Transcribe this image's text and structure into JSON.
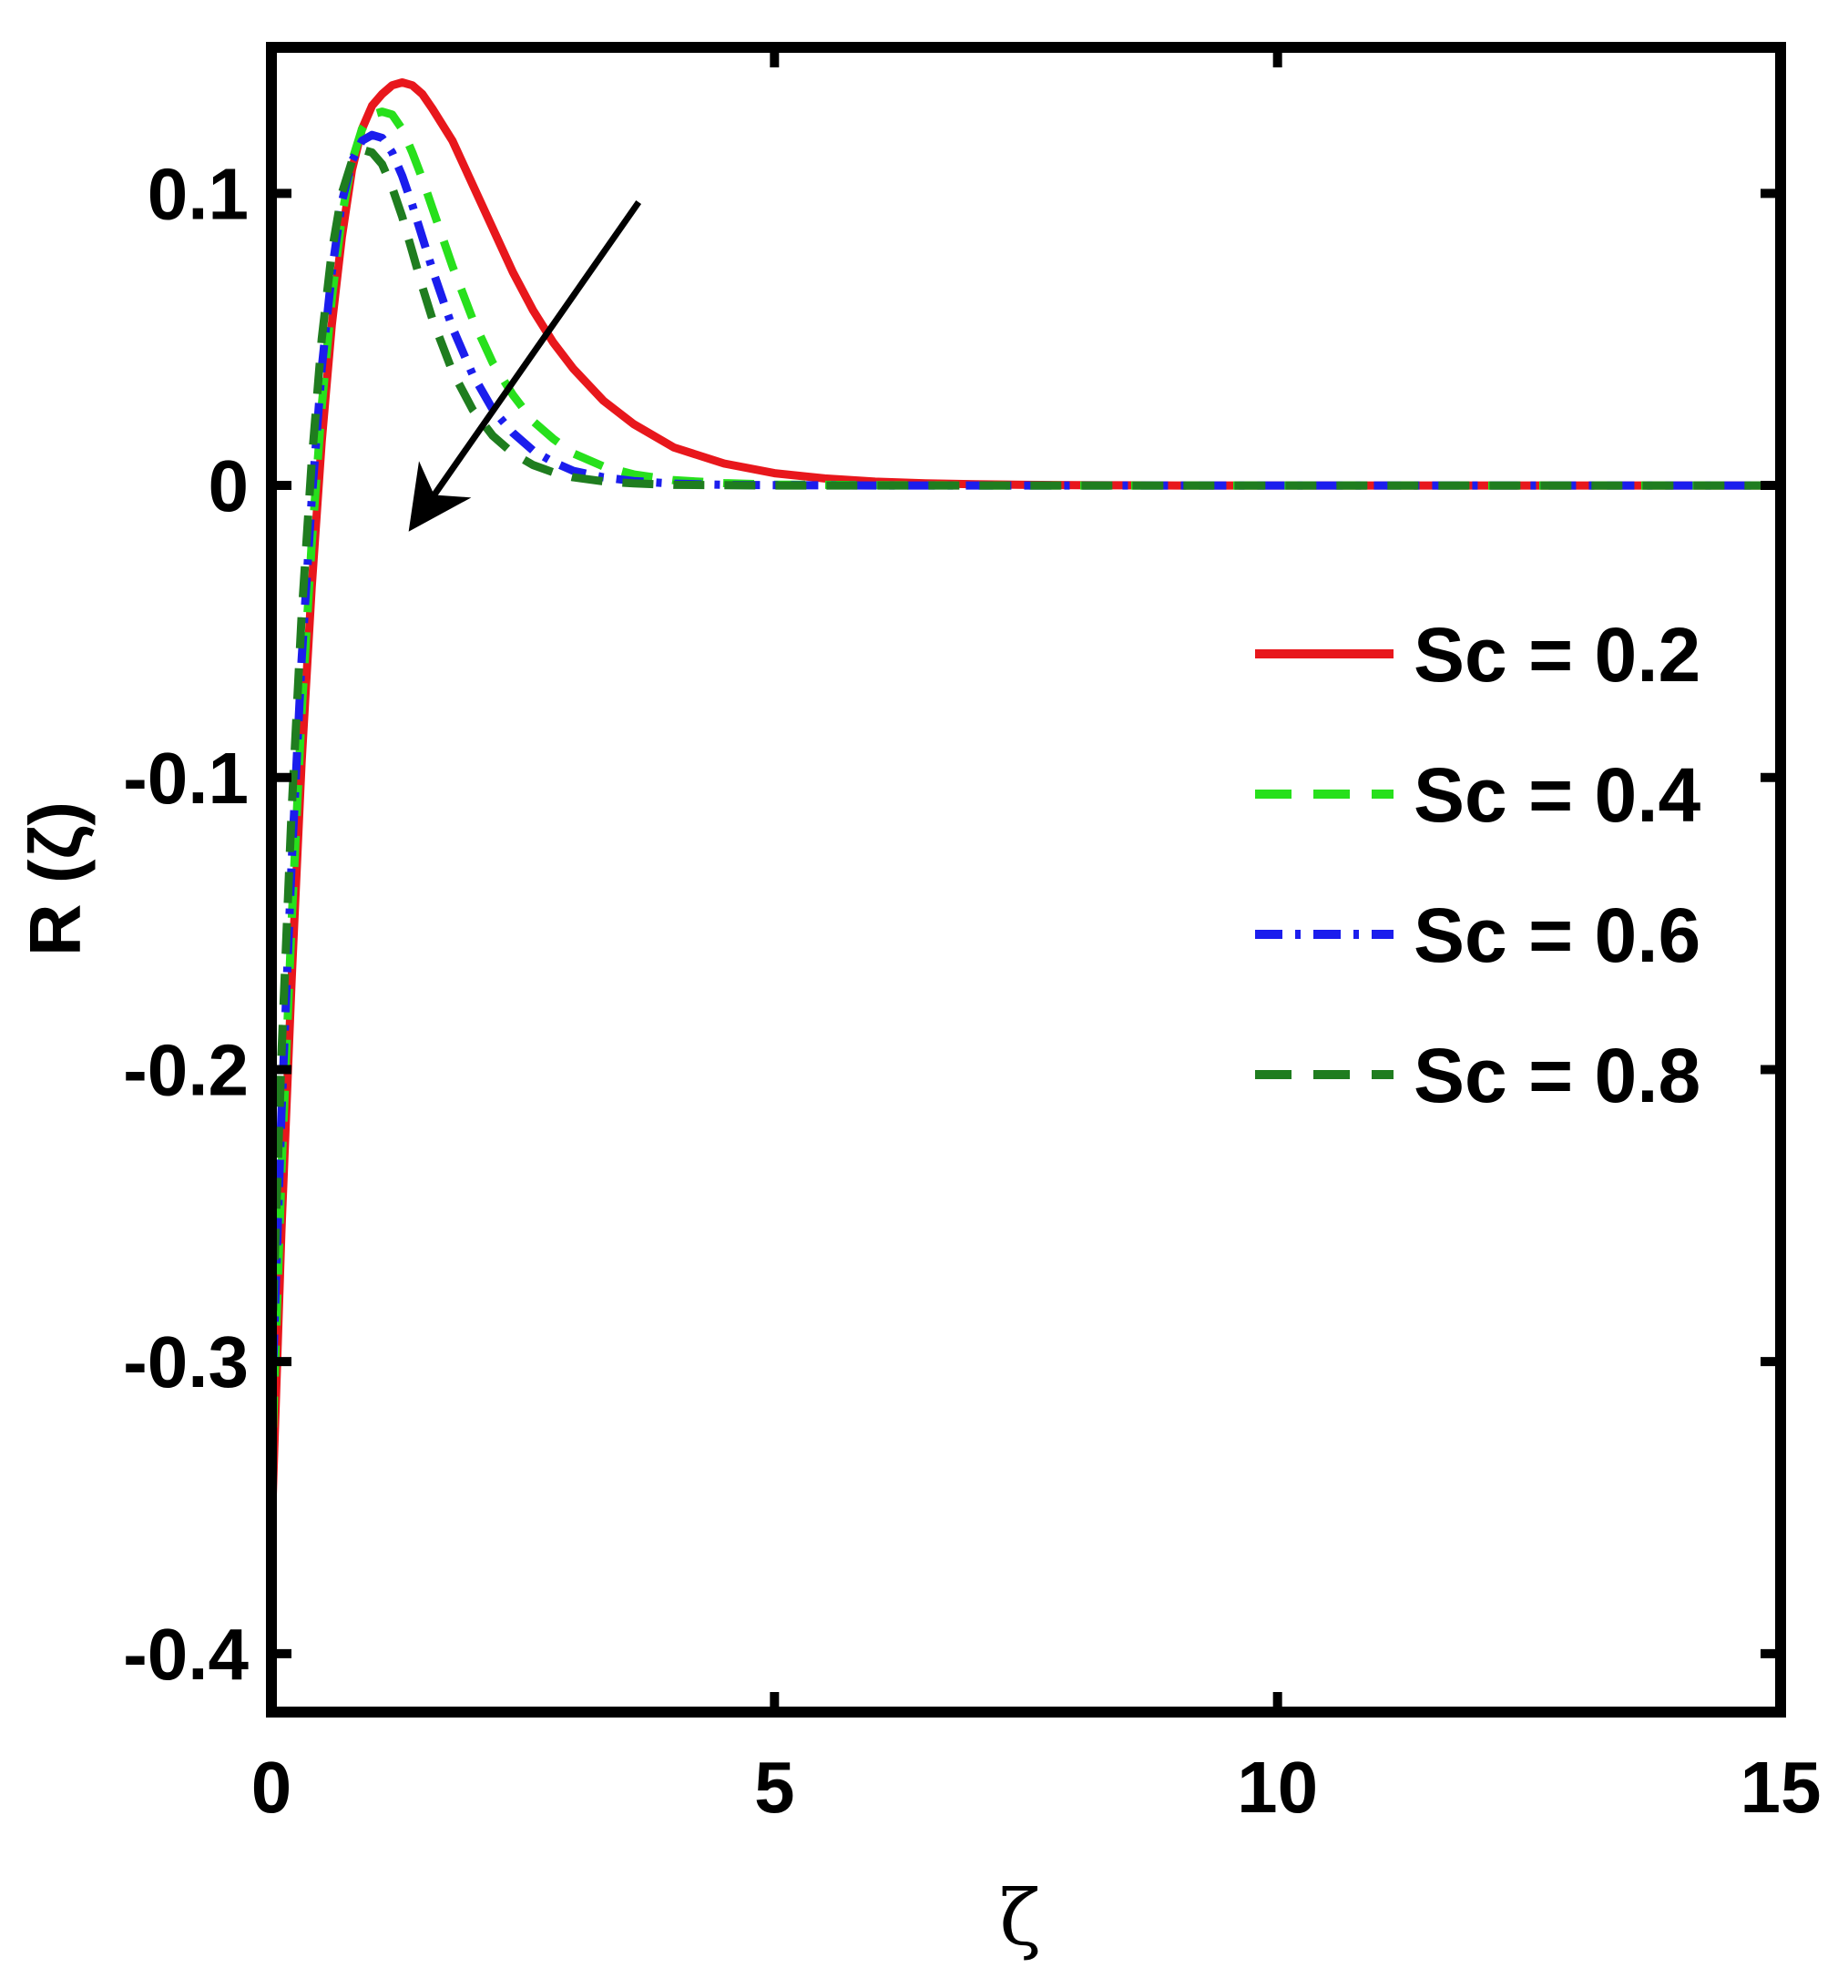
{
  "chart_data": {
    "type": "line",
    "xlabel": "ζ",
    "ylabel": "R (ζ)",
    "xlim": [
      0,
      15
    ],
    "ylim": [
      -0.42,
      0.15
    ],
    "xticks": [
      0,
      5,
      10,
      15
    ],
    "xtick_labels": [
      "0",
      "5",
      "10",
      "15"
    ],
    "yticks": [
      -0.4,
      -0.3,
      -0.2,
      -0.1,
      0,
      0.1
    ],
    "ytick_labels": [
      "-0.4",
      "-0.3",
      "-0.2",
      "-0.1",
      "0",
      "0.1"
    ],
    "grid": false,
    "legend_position": "right",
    "annotation": "arrow pointing down-left indicating decreasing peak as Sc increases",
    "arrow": {
      "from": [
        3.65,
        0.097
      ],
      "to": [
        1.4,
        -0.014
      ]
    },
    "series": [
      {
        "name": "Sc = 0.2",
        "color": "#e8171c",
        "dash": "solid",
        "x": [
          0,
          0.1,
          0.2,
          0.3,
          0.4,
          0.5,
          0.6,
          0.7,
          0.8,
          0.9,
          1.0,
          1.1,
          1.2,
          1.3,
          1.4,
          1.5,
          1.6,
          1.8,
          2.0,
          2.2,
          2.4,
          2.6,
          2.8,
          3.0,
          3.3,
          3.6,
          4.0,
          4.5,
          5.0,
          5.5,
          6.0,
          6.5,
          7.0,
          7.5,
          8.0,
          9.0,
          10.0,
          12.0,
          15.0
        ],
        "values": [
          -0.36,
          -0.255,
          -0.17,
          -0.095,
          -0.035,
          0.015,
          0.055,
          0.085,
          0.108,
          0.122,
          0.13,
          0.134,
          0.137,
          0.138,
          0.137,
          0.134,
          0.129,
          0.118,
          0.103,
          0.088,
          0.073,
          0.06,
          0.049,
          0.04,
          0.029,
          0.021,
          0.013,
          0.0075,
          0.0042,
          0.0024,
          0.0013,
          0.0007,
          0.0004,
          0.0002,
          0.0001,
          0.0,
          0.0,
          0.0,
          0.0
        ]
      },
      {
        "name": "Sc = 0.4",
        "color": "#27e01c",
        "dash": "dashed",
        "x": [
          0,
          0.1,
          0.2,
          0.3,
          0.4,
          0.5,
          0.6,
          0.7,
          0.8,
          0.9,
          1.0,
          1.1,
          1.2,
          1.3,
          1.4,
          1.5,
          1.6,
          1.8,
          2.0,
          2.2,
          2.4,
          2.6,
          2.8,
          3.0,
          3.3,
          3.6,
          4.0,
          4.5,
          5.0,
          6.0,
          7.0,
          8.0,
          10.0,
          12.0,
          15.0
        ],
        "values": [
          -0.34,
          -0.235,
          -0.15,
          -0.078,
          -0.02,
          0.027,
          0.064,
          0.092,
          0.111,
          0.122,
          0.127,
          0.128,
          0.127,
          0.122,
          0.114,
          0.105,
          0.095,
          0.075,
          0.057,
          0.042,
          0.031,
          0.022,
          0.016,
          0.011,
          0.0065,
          0.0038,
          0.0018,
          0.0008,
          0.0003,
          0.0001,
          0.0,
          0.0,
          0.0,
          0.0,
          0.0
        ]
      },
      {
        "name": "Sc = 0.6",
        "color": "#1b1ded",
        "dash": "dashdot",
        "x": [
          0,
          0.1,
          0.2,
          0.3,
          0.4,
          0.5,
          0.6,
          0.7,
          0.8,
          0.9,
          1.0,
          1.1,
          1.2,
          1.3,
          1.4,
          1.5,
          1.6,
          1.8,
          2.0,
          2.2,
          2.4,
          2.6,
          2.8,
          3.0,
          3.3,
          3.6,
          4.0,
          4.5,
          5.0,
          6.0,
          7.0,
          8.0,
          10.0,
          12.0,
          15.0
        ],
        "values": [
          -0.32,
          -0.215,
          -0.13,
          -0.06,
          -0.005,
          0.04,
          0.073,
          0.097,
          0.111,
          0.118,
          0.12,
          0.119,
          0.114,
          0.106,
          0.096,
          0.085,
          0.074,
          0.054,
          0.038,
          0.026,
          0.018,
          0.012,
          0.008,
          0.005,
          0.0028,
          0.0015,
          0.0006,
          0.0002,
          0.0001,
          0.0,
          0.0,
          0.0,
          0.0,
          0.0,
          0.0
        ]
      },
      {
        "name": "Sc = 0.8",
        "color": "#1f7d1f",
        "dash": "dashed",
        "x": [
          0,
          0.1,
          0.2,
          0.3,
          0.4,
          0.5,
          0.6,
          0.7,
          0.8,
          0.9,
          1.0,
          1.1,
          1.2,
          1.3,
          1.4,
          1.5,
          1.6,
          1.8,
          2.0,
          2.2,
          2.4,
          2.6,
          2.8,
          3.0,
          3.3,
          3.6,
          4.0,
          4.5,
          5.0,
          6.0,
          7.0,
          8.0,
          10.0,
          12.0,
          15.0
        ],
        "values": [
          -0.3,
          -0.195,
          -0.112,
          -0.045,
          0.008,
          0.05,
          0.08,
          0.1,
          0.111,
          0.115,
          0.114,
          0.11,
          0.102,
          0.092,
          0.08,
          0.068,
          0.057,
          0.039,
          0.026,
          0.017,
          0.011,
          0.007,
          0.0045,
          0.0028,
          0.0014,
          0.0007,
          0.0002,
          0.0001,
          0.0,
          0.0,
          0.0,
          0.0,
          0.0,
          0.0,
          0.0
        ]
      }
    ]
  }
}
